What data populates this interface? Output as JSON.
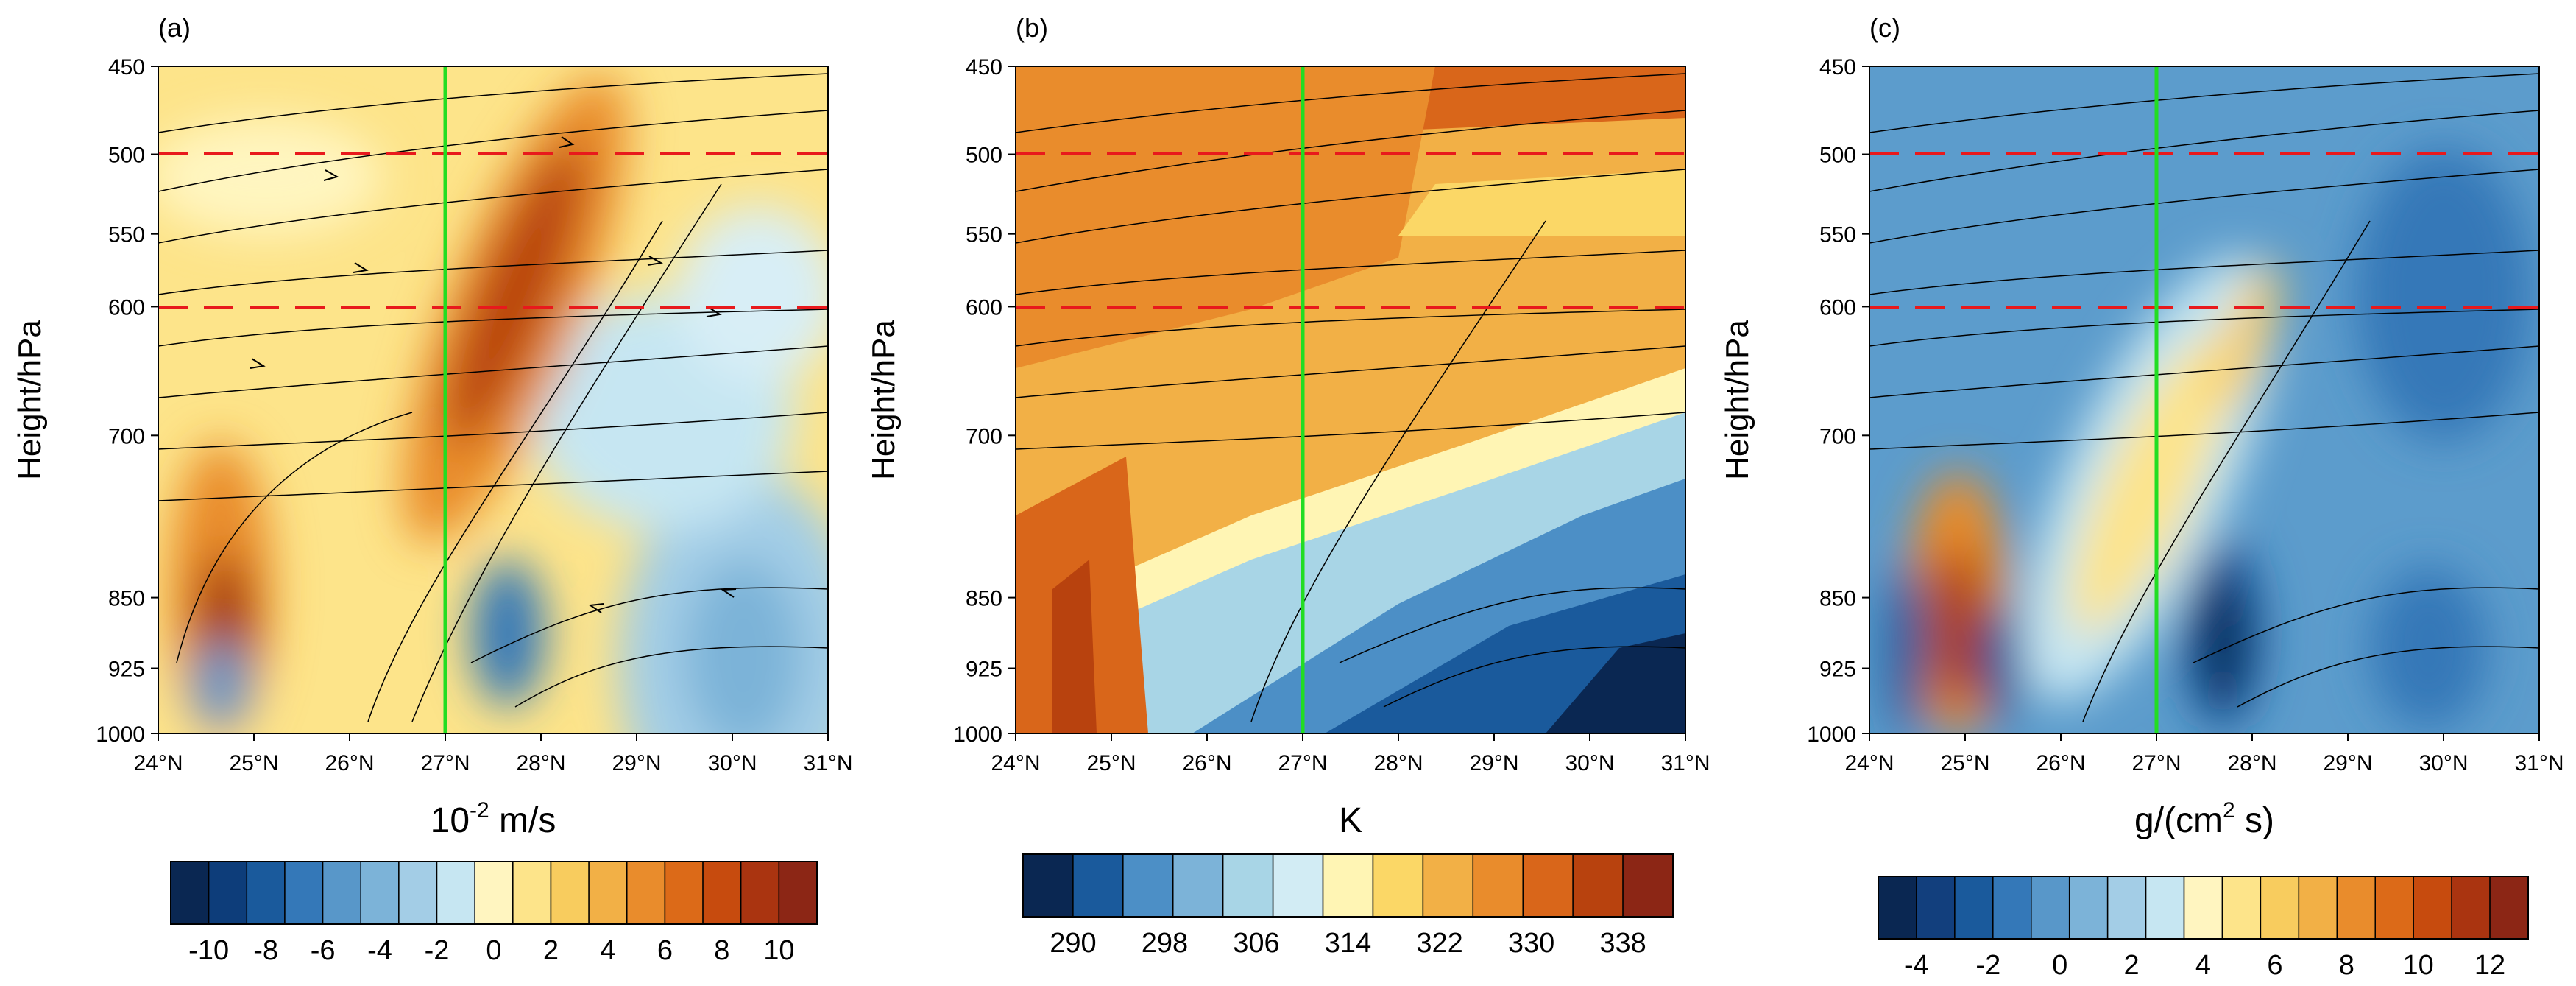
{
  "chart_data": [
    {
      "type": "heatmap",
      "panel_label": "(a)",
      "xlabel": "10",
      "xlabel_sup": "-2",
      "xlabel_rest": " m/s",
      "ylabel": "Height/hPa",
      "x_ticks": [
        "24°N",
        "25°N",
        "26°N",
        "27°N",
        "28°N",
        "29°N",
        "30°N",
        "31°N"
      ],
      "y_ticks": [
        "450",
        "500",
        "550",
        "600",
        "700",
        "850",
        "925",
        "1000"
      ],
      "xlim": [
        24,
        31
      ],
      "ylim": [
        1000,
        450
      ],
      "reference_lines_hpa": [
        500,
        600
      ],
      "reference_line_lat": 27,
      "colorbar_labels": [
        "-10",
        "-8",
        "-6",
        "-4",
        "-2",
        "0",
        "2",
        "4",
        "6",
        "8",
        "10"
      ],
      "colorbar_colors": [
        "#0a2752",
        "#0d3d7a",
        "#1a5a9c",
        "#3478b8",
        "#5897c9",
        "#7cb3d8",
        "#a3cde6",
        "#c6e6f2",
        "#fff5c0",
        "#fde48a",
        "#f8cc5e",
        "#f2b046",
        "#e98c2c",
        "#dc6a18",
        "#c74b0e",
        "#aa3410",
        "#8c2615"
      ],
      "features": [
        {
          "lat": 27.5,
          "p": 620,
          "value": 9
        },
        {
          "lat": 24.7,
          "p": 860,
          "value": 9
        },
        {
          "lat": 27.7,
          "p": 880,
          "value": -8
        },
        {
          "lat": 30.3,
          "p": 900,
          "value": -5
        }
      ]
    },
    {
      "type": "heatmap",
      "panel_label": "(b)",
      "xlabel": "K",
      "ylabel": "Height/hPa",
      "x_ticks": [
        "24°N",
        "25°N",
        "26°N",
        "27°N",
        "28°N",
        "29°N",
        "30°N",
        "31°N"
      ],
      "y_ticks": [
        "450",
        "500",
        "550",
        "600",
        "700",
        "850",
        "925",
        "1000"
      ],
      "xlim": [
        24,
        31
      ],
      "ylim": [
        1000,
        450
      ],
      "reference_lines_hpa": [
        500,
        600
      ],
      "reference_line_lat": 27,
      "colorbar_labels": [
        "290",
        "298",
        "306",
        "314",
        "322",
        "330",
        "338"
      ],
      "colorbar_colors": [
        "#0a2752",
        "#1a5a9c",
        "#4c8fc6",
        "#7cb3d8",
        "#a8d5e6",
        "#d2ecf4",
        "#fff5b4",
        "#fbd766",
        "#f2b046",
        "#e98c2c",
        "#d9661a",
        "#b8420e",
        "#8c2615"
      ],
      "features": [
        {
          "lat": 24.5,
          "p": 470,
          "value": 334
        },
        {
          "lat": 30.5,
          "p": 960,
          "value": 292
        }
      ]
    },
    {
      "type": "heatmap",
      "panel_label": "(c)",
      "xlabel": "g/(cm",
      "xlabel_sup": "2",
      "xlabel_rest": " s)",
      "ylabel": "Height/hPa",
      "x_ticks": [
        "24°N",
        "25°N",
        "26°N",
        "27°N",
        "28°N",
        "29°N",
        "30°N",
        "31°N"
      ],
      "y_ticks": [
        "450",
        "500",
        "550",
        "600",
        "700",
        "850",
        "925",
        "1000"
      ],
      "xlim": [
        24,
        31
      ],
      "ylim": [
        1000,
        450
      ],
      "reference_lines_hpa": [
        500,
        600
      ],
      "reference_line_lat": 27,
      "colorbar_labels": [
        "-4",
        "-2",
        "0",
        "2",
        "4",
        "6",
        "8",
        "10",
        "12"
      ],
      "colorbar_colors": [
        "#0a2752",
        "#123f7d",
        "#1a5a9c",
        "#3478b8",
        "#5897c9",
        "#7cb3d8",
        "#a3cde6",
        "#c6e6f2",
        "#fff5c0",
        "#fde48a",
        "#f8cc5e",
        "#f2b046",
        "#e98c2c",
        "#dc6a18",
        "#c74b0e",
        "#aa3410",
        "#8c2615"
      ],
      "features": [
        {
          "lat": 24.8,
          "p": 880,
          "value": 12
        },
        {
          "lat": 27.8,
          "p": 880,
          "value": -4
        },
        {
          "lat": 27.0,
          "p": 680,
          "value": 5
        }
      ]
    }
  ],
  "colors": {
    "reference_dashed": "#e8191c",
    "vertical_marker": "#22dd22",
    "background": "#5c9ccc"
  }
}
